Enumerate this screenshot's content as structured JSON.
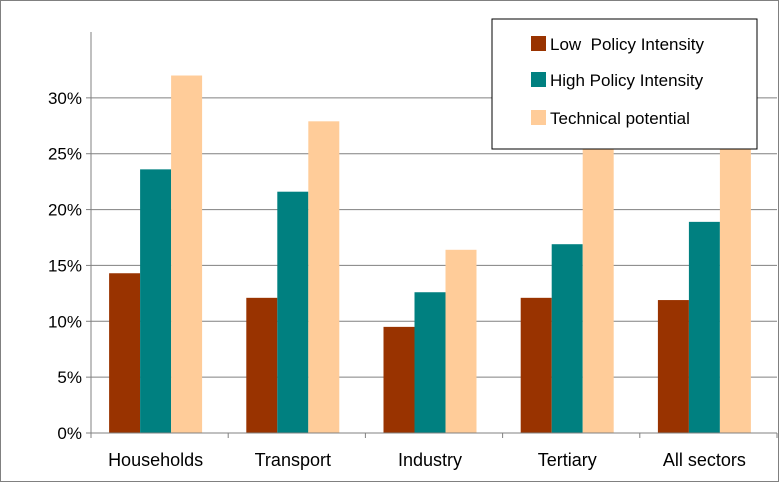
{
  "chart_data": {
    "type": "bar",
    "categories": [
      "Households",
      "Transport",
      "Industry",
      "Tertiary",
      "All sectors"
    ],
    "series": [
      {
        "name": "Low  Policy Intensity",
        "color": "#993300",
        "values": [
          14.3,
          12.1,
          9.5,
          12.1,
          11.9
        ]
      },
      {
        "name": "High Policy Intensity",
        "color": "#008080",
        "values": [
          23.6,
          21.6,
          12.6,
          16.9,
          18.9
        ]
      },
      {
        "name": "Technical potential",
        "color": "#FFCC99",
        "values": [
          32.0,
          27.9,
          16.4,
          25.4,
          25.4
        ]
      }
    ],
    "y_ticks": [
      "0%",
      "5%",
      "10%",
      "15%",
      "20%",
      "25%",
      "30%"
    ],
    "ylim": [
      0,
      35
    ],
    "grid": true,
    "legend_position": "top-right",
    "title": "",
    "xlabel": "",
    "ylabel": ""
  }
}
